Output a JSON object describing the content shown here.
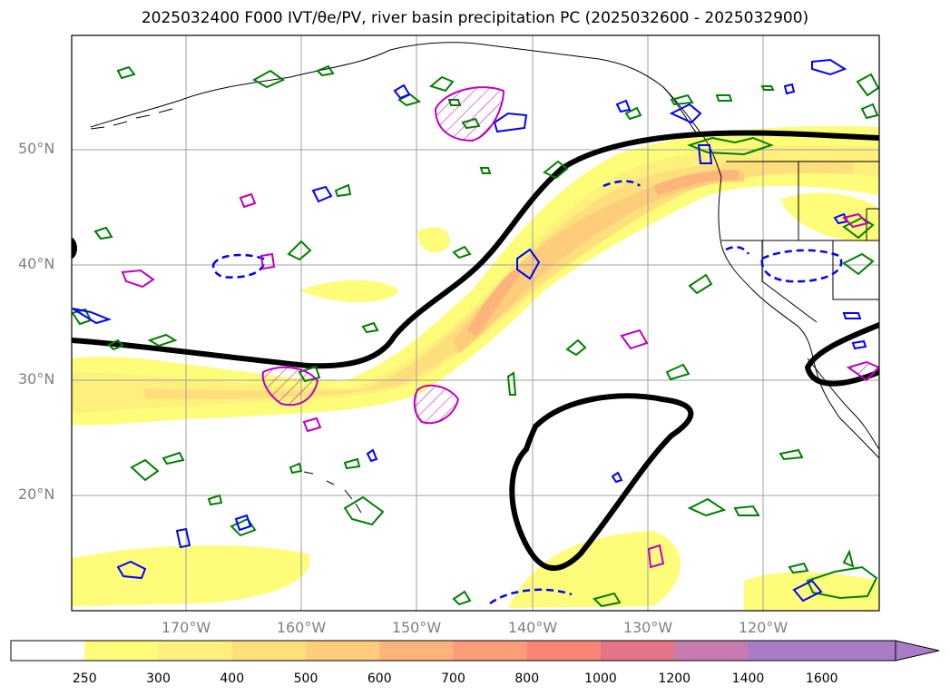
{
  "title": "2025032400 F000 IVT/θe/PV, river basin precipitation PC (2025032600 - 2025032900)",
  "map": {
    "lat_labels": [
      "50°N",
      "40°N",
      "30°N",
      "20°N"
    ],
    "lon_labels": [
      "170°W",
      "160°W",
      "150°W",
      "140°W",
      "130°W",
      "120°W"
    ],
    "gridline_color": "#a0a0a0",
    "land_outline_color": "#000000"
  },
  "colorbar": {
    "levels": [
      "250",
      "300",
      "400",
      "500",
      "600",
      "700",
      "800",
      "1000",
      "1200",
      "1400",
      "1600"
    ],
    "colors": [
      "#ffffff",
      "#fdfd7a",
      "#fef07c",
      "#fedf7c",
      "#fdcd7c",
      "#fdb47a",
      "#fd9c78",
      "#f98576",
      "#e47586",
      "#c67aae",
      "#a87dc6",
      "#a87dc6"
    ],
    "extend": "max"
  },
  "legend_colors": {
    "theta_e_contour": "#000000",
    "pv_positive": "#008000",
    "pv_negative": "#0000ff",
    "precip_pc": "#c000c0"
  }
}
